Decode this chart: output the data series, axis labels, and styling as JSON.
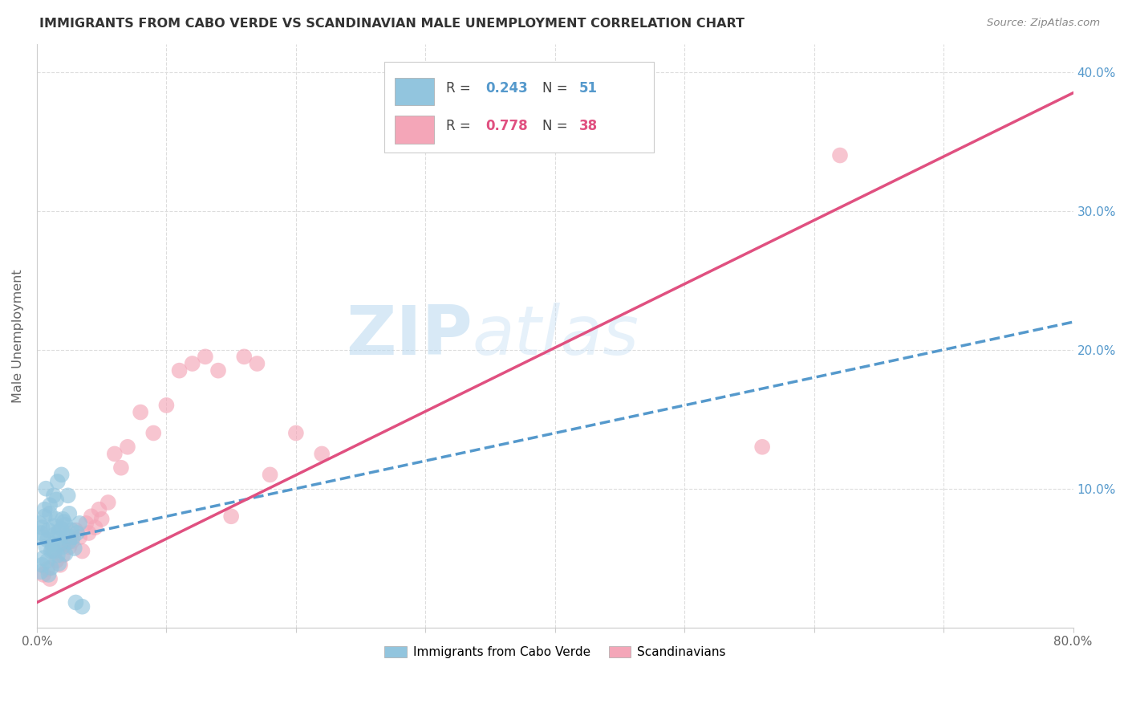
{
  "title": "IMMIGRANTS FROM CABO VERDE VS SCANDINAVIAN MALE UNEMPLOYMENT CORRELATION CHART",
  "source": "Source: ZipAtlas.com",
  "ylabel": "Male Unemployment",
  "xlim": [
    0.0,
    0.8
  ],
  "ylim": [
    0.0,
    0.42
  ],
  "legend_label1": "Immigrants from Cabo Verde",
  "legend_label2": "Scandinavians",
  "r1": "0.243",
  "n1": "51",
  "r2": "0.778",
  "n2": "38",
  "blue_color": "#92c5de",
  "blue_line_color": "#5599cc",
  "pink_color": "#f4a6b8",
  "pink_line_color": "#e05080",
  "watermark_zip": "ZIP",
  "watermark_atlas": "atlas",
  "cabo_verde_x": [
    0.002,
    0.003,
    0.004,
    0.005,
    0.006,
    0.007,
    0.008,
    0.009,
    0.01,
    0.011,
    0.012,
    0.013,
    0.014,
    0.015,
    0.016,
    0.017,
    0.018,
    0.019,
    0.02,
    0.021,
    0.022,
    0.023,
    0.025,
    0.027,
    0.029,
    0.031,
    0.033,
    0.008,
    0.006,
    0.005,
    0.004,
    0.003,
    0.01,
    0.012,
    0.015,
    0.018,
    0.022,
    0.009,
    0.011,
    0.014,
    0.02,
    0.025,
    0.017,
    0.013,
    0.007,
    0.016,
    0.019,
    0.024,
    0.028,
    0.03,
    0.035
  ],
  "cabo_verde_y": [
    0.075,
    0.068,
    0.072,
    0.065,
    0.08,
    0.058,
    0.063,
    0.07,
    0.082,
    0.055,
    0.06,
    0.073,
    0.067,
    0.078,
    0.052,
    0.069,
    0.064,
    0.071,
    0.058,
    0.076,
    0.053,
    0.066,
    0.062,
    0.07,
    0.057,
    0.068,
    0.075,
    0.048,
    0.085,
    0.05,
    0.045,
    0.04,
    0.088,
    0.056,
    0.092,
    0.06,
    0.074,
    0.038,
    0.043,
    0.055,
    0.078,
    0.082,
    0.046,
    0.095,
    0.1,
    0.105,
    0.11,
    0.095,
    0.065,
    0.018,
    0.015
  ],
  "scandinavians_x": [
    0.005,
    0.008,
    0.01,
    0.013,
    0.015,
    0.018,
    0.02,
    0.022,
    0.025,
    0.027,
    0.03,
    0.033,
    0.035,
    0.038,
    0.04,
    0.042,
    0.045,
    0.048,
    0.05,
    0.055,
    0.06,
    0.065,
    0.07,
    0.08,
    0.09,
    0.1,
    0.11,
    0.12,
    0.13,
    0.14,
    0.15,
    0.16,
    0.17,
    0.18,
    0.2,
    0.22,
    0.56,
    0.62
  ],
  "scandinavians_y": [
    0.038,
    0.042,
    0.035,
    0.055,
    0.048,
    0.045,
    0.052,
    0.06,
    0.058,
    0.062,
    0.07,
    0.065,
    0.055,
    0.075,
    0.068,
    0.08,
    0.072,
    0.085,
    0.078,
    0.09,
    0.125,
    0.115,
    0.13,
    0.155,
    0.14,
    0.16,
    0.185,
    0.19,
    0.195,
    0.185,
    0.08,
    0.195,
    0.19,
    0.11,
    0.14,
    0.125,
    0.13,
    0.34
  ],
  "cv_line_x0": 0.0,
  "cv_line_x1": 0.8,
  "cv_line_y0": 0.06,
  "cv_line_y1": 0.22,
  "sc_line_x0": 0.0,
  "sc_line_x1": 0.8,
  "sc_line_y0": 0.018,
  "sc_line_y1": 0.385
}
